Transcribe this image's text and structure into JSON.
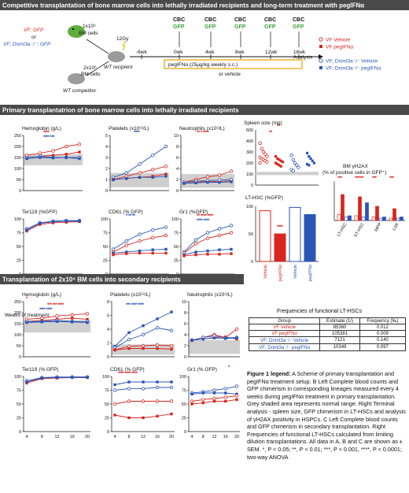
{
  "panelA": {
    "letter": "A",
    "title": "Competitive transplantation of bone marrow cells into lethally irradiated recipients and long-term treatment with pegIFNα",
    "donor_line1": "VF; GFP",
    "donor_or": "or",
    "donor_line2": "VF; Dnmt3a⁻/⁻; GFP",
    "bm_cells_top": "1x10⁵",
    "bm_cells_top_label": "BM cells",
    "gy": "12Gy",
    "bm_cells_bottom": "2x10⁶",
    "bm_cells_bottom_label": "BM cells",
    "recipient": "WT recipient",
    "competitor": "WT competitor",
    "timepoints": [
      "-6wk",
      "0wk",
      "4wk",
      "8wk",
      "12wk",
      "16wk"
    ],
    "cbc": "CBC",
    "gfp": "GFP",
    "treatment": "pegIFNα (25μg/kg weekly s.c.)",
    "treatment_or": "or vehicle",
    "analysis": "Analysis",
    "legend": [
      "VF Vehicle",
      "VF pegIFNα",
      "VF; Dnmt3a⁻/⁻ Vehicle",
      "VF; Dnmt3a⁻/⁻ pegIFNα"
    ]
  },
  "panelB": {
    "letter": "B",
    "title": "Primary transplantatrion of bone marrow cells into lethally irradiated recipients",
    "chart_titles": [
      "Hemoglobin (g/L)",
      "Platelets (x10¹²/L)",
      "Neutrophils (x10⁹/L)",
      "Spleen size (mg)"
    ],
    "gfp_titles": [
      "Ter119 (%GFP)",
      "CD61 (% GFP)",
      "Gr1 (%GFP)",
      "LT-HSC (%GFP)"
    ],
    "xlabel": "Weeks of treatment",
    "week_ticks": [
      "0",
      "4",
      "8",
      "12",
      "16"
    ],
    "bm_title_1": "BM γH2AX",
    "bm_title_2": "(% of positive cells in GFP⁺)",
    "bm_categories": [
      "LT-HSC",
      "ST-HSC",
      "MPP",
      "LSK"
    ],
    "bar_categories": [
      "Vehicle",
      "pegIFNα",
      "Vehicle",
      "pegIFNα"
    ]
  },
  "panelC": {
    "letter": "C",
    "title": "Transplantation of 2x10⁶ BM cells into secondary recipients",
    "chart_titles": [
      "Hemoglobin (g/L)",
      "Platelets (x10¹²/L)",
      "Neutrophils (x10⁹/L)"
    ],
    "gfp_titles": [
      "Ter119 (% GFP)",
      "CD61 (% GFP)",
      "Gr1 (% GFP)"
    ],
    "week_ticks": [
      "4",
      "8",
      "12",
      "16",
      "20"
    ]
  },
  "freq_table": {
    "title": "Frequencies of functional LT-HSCs",
    "headers": [
      "Group",
      "Estimate (1/)",
      "Frequency (‰)"
    ],
    "rows": [
      [
        "VF Vehicle",
        "85360",
        "0.012"
      ],
      [
        "VF pegIFNα",
        "105381",
        "0.009"
      ],
      [
        "VF; Dnmt3a⁻/⁻ Vehicle",
        "7121",
        "0.140"
      ],
      [
        "VF; Dnmt3a⁻/⁻ pegIFNα",
        "10349",
        "0.097"
      ]
    ]
  },
  "legend_text": {
    "label": "Figure 1 legend:",
    "body": " A Scheme of primary transplantation and pegIFNα treatment setup. B Left Complete blood counts and GFP chimerism in corresponding lineages measured every 4 weeks during pegIFNα treatment in primary transplantation. Grey shaded area represents normal range. Right Terminal analysis - spleen size, GFP chimerism in LT-HSCs and analysis of γH2AX positivity in HSPCs. C Left Complete blood counts and GFP chimerism in secondary transplantation. Right Frequencies of functional LT-HSCs calculated from limiting dilution transplantations. All data in A, B and C are shown as ± SEM. *, P < 0.05; **, P < 0.01; ***, P < 0.001, ****, P < 0.0001; two-way ANOVA"
  },
  "colors": {
    "red": "#d7261f",
    "blue": "#2b55b5",
    "green": "#3aa53a",
    "banner": "#4a4a4a",
    "grey_range": "#cfcfcf"
  }
}
